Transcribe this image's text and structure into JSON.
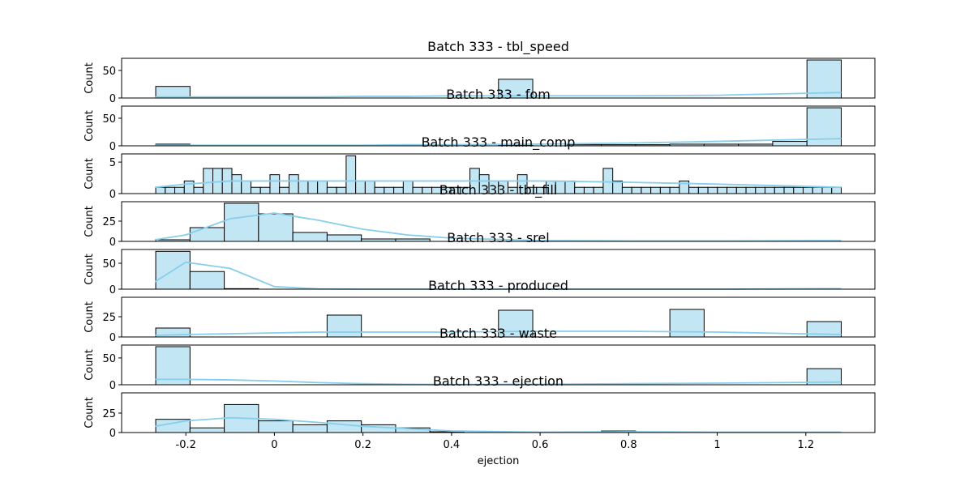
{
  "chart_data": [
    {
      "type": "histogram",
      "title": "Batch 333 - tbl_speed",
      "y_label": "Count",
      "color": "#c3e6f5",
      "edge_color": "#000000",
      "kde_color": "#87ceeb",
      "bins": [
        -0.268,
        -0.1906,
        -0.1132,
        -0.0358,
        0.0416,
        0.119,
        0.1964,
        0.2738,
        0.3512,
        0.4286,
        0.506,
        0.5834,
        0.6608,
        0.7382,
        0.8156,
        0.893,
        0.9704,
        1.0478,
        1.1252,
        1.2026,
        1.28
      ],
      "counts": [
        21,
        0,
        0,
        0,
        0,
        0,
        0,
        0,
        0,
        0,
        34,
        0,
        0,
        0,
        0,
        0,
        0,
        0,
        0,
        69
      ],
      "kde": {
        "x": [
          -0.27,
          -0.2,
          -0.1,
          0,
          0.1,
          0.2,
          0.3,
          0.4,
          0.6,
          0.8,
          1.0,
          1.28
        ],
        "y": [
          2,
          2,
          2,
          2,
          2,
          3,
          3,
          4,
          4,
          4,
          5,
          10
        ]
      },
      "xlim": [
        -0.345,
        1.356
      ],
      "ylim": [
        0,
        72
      ],
      "yticks": [
        0,
        50
      ]
    },
    {
      "type": "histogram",
      "title": "Batch 333 - fom",
      "y_label": "Count",
      "color": "#c3e6f5",
      "edge_color": "#000000",
      "kde_color": "#87ceeb",
      "bins": [
        -0.268,
        -0.1906,
        -0.1132,
        -0.0358,
        0.0416,
        0.119,
        0.1964,
        0.2738,
        0.3512,
        0.4286,
        0.506,
        0.5834,
        0.6608,
        0.7382,
        0.8156,
        0.893,
        0.9704,
        1.0478,
        1.1252,
        1.2026,
        1.28
      ],
      "counts": [
        3,
        0,
        0,
        0,
        0,
        0,
        1,
        1,
        0,
        0,
        1,
        0,
        2,
        2,
        2,
        3,
        3,
        3,
        8,
        69
      ],
      "kde": {
        "x": [
          -0.27,
          -0.2,
          -0.1,
          0,
          0.1,
          0.2,
          0.3,
          0.4,
          0.6,
          0.8,
          1.0,
          1.28
        ],
        "y": [
          1,
          1,
          1,
          1,
          1,
          1,
          2,
          2,
          3,
          5,
          8,
          13
        ]
      },
      "xlim": [
        -0.345,
        1.356
      ],
      "ylim": [
        0,
        72
      ],
      "yticks": [
        0,
        50
      ]
    },
    {
      "type": "histogram",
      "title": "Batch 333 - main_comp",
      "y_label": "Count",
      "color": "#c3e6f5",
      "edge_color": "#000000",
      "kde_color": "#87ceeb",
      "bins": [
        -0.268,
        -0.2465,
        -0.225,
        -0.2035,
        -0.182,
        -0.1605,
        -0.139,
        -0.1175,
        -0.096,
        -0.0745,
        -0.053,
        -0.0315,
        -0.01,
        0.0115,
        0.033,
        0.0545,
        0.076,
        0.0975,
        0.119,
        0.1405,
        0.162,
        0.1835,
        0.205,
        0.2265,
        0.248,
        0.2695,
        0.291,
        0.3125,
        0.334,
        0.3555,
        0.377,
        0.3985,
        0.42,
        0.4415,
        0.463,
        0.4845,
        0.506,
        0.5275,
        0.549,
        0.5705,
        0.592,
        0.6135,
        0.635,
        0.6565,
        0.678,
        0.6995,
        0.721,
        0.7425,
        0.764,
        0.7855,
        0.807,
        0.8285,
        0.85,
        0.8715,
        0.893,
        0.9145,
        0.936,
        0.9575,
        0.979,
        1.0005,
        1.022,
        1.0435,
        1.065,
        1.0865,
        1.108,
        1.1295,
        1.151,
        1.1725,
        1.194,
        1.2155,
        1.237,
        1.2585,
        1.28
      ],
      "counts": [
        1,
        1,
        1,
        2,
        1,
        4,
        4,
        4,
        3,
        2,
        1,
        1,
        3,
        1,
        3,
        2,
        2,
        2,
        1,
        1,
        6,
        2,
        2,
        1,
        1,
        1,
        2,
        1,
        1,
        1,
        1,
        1,
        1,
        4,
        3,
        2,
        2,
        1,
        3,
        1,
        1,
        2,
        2,
        2,
        1,
        1,
        1,
        4,
        2,
        1,
        1,
        1,
        1,
        1,
        1,
        2,
        1,
        1,
        1,
        1,
        1,
        1,
        1,
        1,
        1,
        1,
        1,
        1,
        1,
        1,
        1,
        1
      ],
      "kde": {
        "x": [
          -0.27,
          -0.2,
          -0.1,
          0,
          0.1,
          0.2,
          0.3,
          0.4,
          0.6,
          0.8,
          1.0,
          1.28
        ],
        "y": [
          1,
          1.5,
          2,
          2,
          2,
          2,
          2,
          2,
          2,
          1.8,
          1.5,
          1
        ]
      },
      "xlim": [
        -0.345,
        1.356
      ],
      "ylim": [
        0,
        6.3
      ],
      "yticks": [
        0,
        5
      ]
    },
    {
      "type": "histogram",
      "title": "Batch 333 - tbl_fill",
      "y_label": "Count",
      "color": "#c3e6f5",
      "edge_color": "#000000",
      "kde_color": "#87ceeb",
      "bins": [
        -0.268,
        -0.1906,
        -0.1132,
        -0.0358,
        0.0416,
        0.119,
        0.1964,
        0.2738,
        0.3512,
        0.4286,
        0.506,
        0.5834,
        0.6608,
        0.7382,
        0.8156,
        0.893,
        0.9704,
        1.0478,
        1.1252,
        1.2026,
        1.28
      ],
      "counts": [
        2,
        17,
        47,
        34,
        11,
        8,
        3,
        3,
        0,
        0,
        0,
        0,
        0,
        0,
        0,
        0,
        0,
        0,
        0,
        0
      ],
      "kde": {
        "x": [
          -0.27,
          -0.2,
          -0.1,
          0,
          0.1,
          0.2,
          0.3,
          0.4,
          0.6,
          0.8,
          1.0,
          1.28
        ],
        "y": [
          2,
          8,
          28,
          35,
          26,
          15,
          8,
          4,
          1,
          0.5,
          0.5,
          1
        ]
      },
      "xlim": [
        -0.345,
        1.356
      ],
      "ylim": [
        0,
        49
      ],
      "yticks": [
        0,
        25
      ]
    },
    {
      "type": "histogram",
      "title": "Batch 333 - srel",
      "y_label": "Count",
      "color": "#c3e6f5",
      "edge_color": "#000000",
      "kde_color": "#87ceeb",
      "bins": [
        -0.268,
        -0.1906,
        -0.1132,
        -0.0358,
        0.0416,
        0.119,
        0.1964,
        0.2738,
        0.3512,
        0.4286,
        0.506,
        0.5834,
        0.6608,
        0.7382,
        0.8156,
        0.893,
        0.9704,
        1.0478,
        1.1252,
        1.2026,
        1.28
      ],
      "counts": [
        73,
        34,
        1,
        0,
        0,
        0,
        0,
        0,
        0,
        0,
        0,
        0,
        0,
        0,
        0,
        0,
        0,
        0,
        0,
        0
      ],
      "kde": {
        "x": [
          -0.27,
          -0.2,
          -0.1,
          0,
          0.1,
          0.2,
          0.3,
          0.4,
          0.6,
          0.8,
          1.0,
          1.28
        ],
        "y": [
          14,
          52,
          40,
          5,
          0.5,
          0,
          0,
          0,
          0,
          0,
          0,
          1
        ]
      },
      "xlim": [
        -0.345,
        1.356
      ],
      "ylim": [
        0,
        76.6
      ],
      "yticks": [
        0,
        50
      ]
    },
    {
      "type": "histogram",
      "title": "Batch 333 - produced",
      "y_label": "Count",
      "color": "#c3e6f5",
      "edge_color": "#000000",
      "kde_color": "#87ceeb",
      "bins": [
        -0.268,
        -0.1906,
        -0.1132,
        -0.0358,
        0.0416,
        0.119,
        0.1964,
        0.2738,
        0.3512,
        0.4286,
        0.506,
        0.5834,
        0.6608,
        0.7382,
        0.8156,
        0.893,
        0.9704,
        1.0478,
        1.1252,
        1.2026,
        1.28
      ],
      "counts": [
        11,
        0,
        0,
        0,
        0,
        27,
        0,
        0,
        0,
        0,
        33,
        0,
        0,
        0,
        0,
        34,
        0,
        0,
        0,
        19
      ],
      "kde": {
        "x": [
          -0.27,
          -0.2,
          -0.1,
          0,
          0.1,
          0.2,
          0.3,
          0.4,
          0.6,
          0.8,
          1.0,
          1.28
        ],
        "y": [
          2,
          3,
          4,
          5,
          6,
          6,
          6,
          6,
          7,
          7,
          6,
          3
        ]
      },
      "xlim": [
        -0.345,
        1.356
      ],
      "ylim": [
        0,
        49
      ],
      "yticks": [
        0,
        25
      ]
    },
    {
      "type": "histogram",
      "title": "Batch 333 - waste",
      "y_label": "Count",
      "color": "#c3e6f5",
      "edge_color": "#000000",
      "kde_color": "#87ceeb",
      "bins": [
        -0.268,
        -0.1906,
        -0.1132,
        -0.0358,
        0.0416,
        0.119,
        0.1964,
        0.2738,
        0.3512,
        0.4286,
        0.506,
        0.5834,
        0.6608,
        0.7382,
        0.8156,
        0.893,
        0.9704,
        1.0478,
        1.1252,
        1.2026,
        1.28
      ],
      "counts": [
        71,
        0,
        0,
        0,
        0,
        0,
        0,
        0,
        0,
        0,
        0,
        0,
        0,
        0,
        0,
        0,
        0,
        0,
        0,
        30
      ],
      "kde": {
        "x": [
          -0.27,
          -0.2,
          -0.1,
          0,
          0.1,
          0.2,
          0.3,
          0.4,
          0.6,
          0.8,
          1.0,
          1.28
        ],
        "y": [
          10,
          10,
          9,
          7,
          4,
          2,
          1,
          0.5,
          1,
          2,
          3,
          5
        ]
      },
      "xlim": [
        -0.345,
        1.356
      ],
      "ylim": [
        0,
        74
      ],
      "yticks": [
        0,
        50
      ]
    },
    {
      "type": "histogram",
      "title": "Batch 333 - ejection",
      "y_label": "Count",
      "x_label": "ejection",
      "color": "#c3e6f5",
      "edge_color": "#000000",
      "kde_color": "#87ceeb",
      "bins": [
        -0.268,
        -0.1906,
        -0.1132,
        -0.0358,
        0.0416,
        0.119,
        0.1964,
        0.2738,
        0.3512,
        0.4286,
        0.506,
        0.5834,
        0.6608,
        0.7382,
        0.8156,
        0.893,
        0.9704,
        1.0478,
        1.1252,
        1.2026,
        1.28
      ],
      "counts": [
        17,
        6,
        36,
        15,
        10,
        15,
        10,
        6,
        1,
        0,
        0,
        0,
        0,
        2,
        0,
        0,
        0,
        0,
        0,
        0
      ],
      "kde": {
        "x": [
          -0.27,
          -0.2,
          -0.1,
          0,
          0.1,
          0.2,
          0.3,
          0.4,
          0.6,
          0.8,
          1.0,
          1.28
        ],
        "y": [
          8,
          15,
          19,
          17,
          13,
          8,
          5,
          2,
          0.5,
          1,
          0.5,
          0.5
        ]
      },
      "xlim": [
        -0.345,
        1.356
      ],
      "ylim": [
        0,
        51
      ],
      "yticks": [
        0,
        25
      ],
      "xticks": [
        -0.2,
        0.0,
        0.2,
        0.4,
        0.6,
        0.8,
        1.0,
        1.2
      ]
    }
  ]
}
